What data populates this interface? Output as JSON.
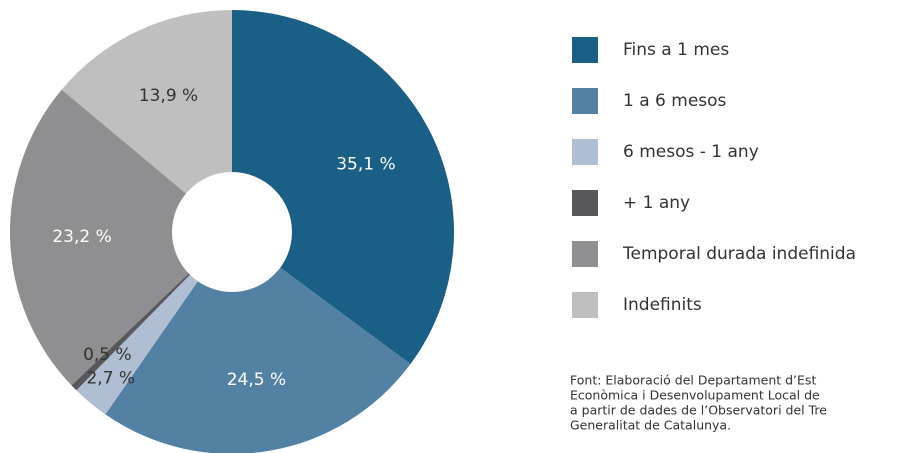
{
  "chart_data": {
    "type": "pie",
    "categories": [
      "Fins a 1 mes",
      "1 a 6 mesos",
      "6 mesos - 1 any",
      "+ 1 any",
      "Temporal durada indefinida",
      "Indefinits"
    ],
    "values": [
      35.1,
      24.5,
      2.7,
      0.5,
      23.2,
      13.9
    ],
    "value_labels": [
      "35,1 %",
      "24,5 %",
      "2,7 %",
      "0,5 %",
      "23,2 %",
      "13,9 %"
    ],
    "colors": [
      "#1a5f86",
      "#5281a4",
      "#b0bed3",
      "#58585a",
      "#8f8e90",
      "#bfbfbf"
    ],
    "legend": "right",
    "note": [
      "Font: Elaboració del Departament d’Est",
      "Econòmica i Desenvolupament Local de",
      "a partir de dades de l’Observatori del Tre",
      "Generalitat de Catalunya."
    ]
  }
}
